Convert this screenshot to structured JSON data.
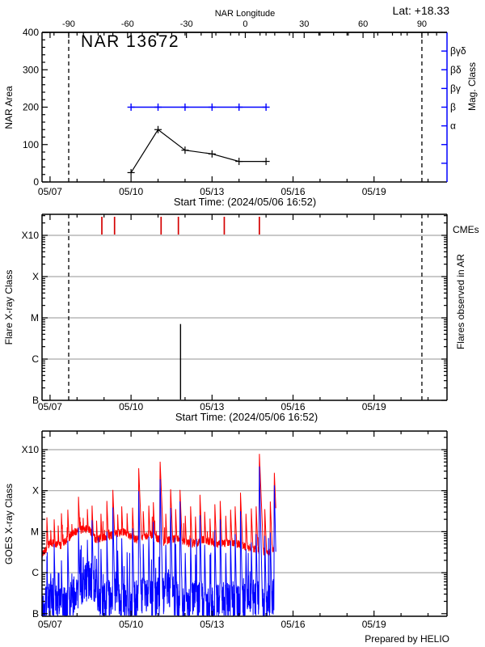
{
  "header": {
    "lat_label": "Lat: +18.33",
    "prepared_by": "Prepared by HELIO"
  },
  "colors": {
    "axis": "#000000",
    "blue": "#0000FF",
    "goes_red": "#FF0000",
    "goes_blue": "#0000FF",
    "cme_red": "#D40000",
    "grid": "#A9A9A9",
    "background": "#FFFFFF"
  },
  "x_axis": {
    "start_label": "Start Time: (2024/05/06 16:52)",
    "tick_labels": [
      "05/07",
      "05/10",
      "05/13",
      "05/16",
      "05/19"
    ],
    "tick_days": [
      0.297,
      3.297,
      6.297,
      9.297,
      12.297
    ],
    "minor_day_start": 0.297,
    "n_days": 15
  },
  "chart_data": [
    {
      "id": "nar_area_panel",
      "type": "line",
      "title": "NAR 13672",
      "lat_label": "Lat: +18.33",
      "ylabel": "NAR Area",
      "ylim": [
        0,
        400
      ],
      "y_major_step": 100,
      "y_minor_step": 20,
      "y_tick_labels": [
        "0",
        "100",
        "200",
        "300",
        "400"
      ],
      "top_axis": {
        "label": "NAR Longitude",
        "ticks": [
          -90,
          -60,
          -30,
          0,
          30,
          60,
          90
        ],
        "minor_step": 7.5,
        "limb_crossing_days": [
          0.988,
          14.07
        ]
      },
      "right_axis": {
        "label": "Mag. Class",
        "ticks": [
          {
            "area": 350,
            "label": "βγδ"
          },
          {
            "area": 300,
            "label": "βδ"
          },
          {
            "area": 250,
            "label": "βγ"
          },
          {
            "area": 200,
            "label": "β"
          },
          {
            "area": 150,
            "label": "α"
          },
          {
            "area": 100,
            "label": ""
          },
          {
            "area": 50,
            "label": ""
          }
        ]
      },
      "area_series": {
        "days": [
          3.297,
          4.297,
          5.297,
          6.297,
          7.297,
          8.297
        ],
        "dates": [
          "05/10",
          "05/11",
          "05/12",
          "05/13",
          "05/14",
          "05/15"
        ],
        "values": [
          25,
          140,
          85,
          75,
          55,
          55
        ]
      },
      "mag_class_series": {
        "days": [
          3.297,
          4.297,
          5.297,
          6.297,
          7.297,
          8.297
        ],
        "class_label": "β",
        "area_level": 200
      },
      "xlabel": "Start Time: (2024/05/06 16:52)"
    },
    {
      "id": "flare_panel",
      "type": "events",
      "ylabel": "Flare X-ray Class",
      "right_label": "Flares observed in AR",
      "cme_label": "CMEs",
      "y_ticks": [
        {
          "log": -7,
          "label": "B"
        },
        {
          "log": -6,
          "label": "C"
        },
        {
          "log": -5,
          "label": "M"
        },
        {
          "log": -4,
          "label": "X"
        },
        {
          "log": -3,
          "label": "X10"
        }
      ],
      "grid_logs": [
        -6,
        -5,
        -4,
        -3
      ],
      "limb_crossing_days": [
        0.988,
        14.07
      ],
      "cme_days": [
        2.216,
        2.686,
        4.41,
        5.05,
        6.75,
        8.05
      ],
      "flares": [
        {
          "day": 5.13,
          "peak_log": -5.15,
          "class": "C7"
        }
      ],
      "xlabel": "Start Time: (2024/05/06 16:52)"
    },
    {
      "id": "goes_panel",
      "type": "line",
      "ylabel": "GOES X-ray Class",
      "credit": "Prepared by HELIO",
      "y_ticks": [
        {
          "log": -7,
          "label": "B"
        },
        {
          "log": -6,
          "label": "C"
        },
        {
          "log": -5,
          "label": "M"
        },
        {
          "log": -4,
          "label": "X"
        },
        {
          "log": -3,
          "label": "X10"
        }
      ],
      "grid_logs": [
        -6,
        -5,
        -4,
        -3
      ],
      "series_gen": {
        "seed": 13672,
        "t_start": 0.0,
        "t_end": 8.66,
        "dt": 0.006,
        "rise_rate": 260,
        "red": {
          "noise": 0.1,
          "burst_prob": 0.02,
          "burst_amp": 0.45,
          "decay_rate": 16,
          "base_nodes": [
            [
              0,
              -5.6
            ],
            [
              0.3,
              -5.25
            ],
            [
              0.7,
              -5.35
            ],
            [
              1.2,
              -5.0
            ],
            [
              1.7,
              -4.9
            ],
            [
              2.0,
              -5.2
            ],
            [
              2.5,
              -5.1
            ],
            [
              3.0,
              -5.0
            ],
            [
              3.5,
              -5.2
            ],
            [
              4.0,
              -5.05
            ],
            [
              4.5,
              -5.25
            ],
            [
              5.0,
              -5.15
            ],
            [
              5.5,
              -5.3
            ],
            [
              6.0,
              -5.2
            ],
            [
              6.5,
              -5.3
            ],
            [
              7.0,
              -5.25
            ],
            [
              7.5,
              -5.35
            ],
            [
              8.0,
              -5.45
            ],
            [
              8.4,
              -5.5
            ],
            [
              8.66,
              -5.35
            ]
          ]
        },
        "blue": {
          "noise": 0.5,
          "burst_prob": 0.05,
          "burst_amp": 1.2,
          "decay_rate": 30,
          "base_nodes": [
            [
              0,
              -6.95
            ],
            [
              0.4,
              -6.6
            ],
            [
              0.9,
              -6.9
            ],
            [
              1.4,
              -6.3
            ],
            [
              1.8,
              -6.2
            ],
            [
              2.2,
              -6.8
            ],
            [
              2.7,
              -6.5
            ],
            [
              3.2,
              -6.9
            ],
            [
              3.7,
              -6.5
            ],
            [
              4.2,
              -6.7
            ],
            [
              4.7,
              -6.4
            ],
            [
              5.2,
              -6.9
            ],
            [
              5.7,
              -6.6
            ],
            [
              6.2,
              -6.9
            ],
            [
              6.7,
              -6.7
            ],
            [
              7.2,
              -6.85
            ],
            [
              7.7,
              -6.5
            ],
            [
              8.2,
              -6.9
            ],
            [
              8.66,
              -6.5
            ]
          ]
        },
        "spikes": [
          [
            0.18,
            -4.65,
            -5.6
          ],
          [
            0.32,
            -4.9,
            -5.9
          ],
          [
            0.45,
            -4.7,
            -5.3
          ],
          [
            0.6,
            -4.85,
            -6.0
          ],
          [
            0.72,
            -4.55,
            -5.7
          ],
          [
            0.95,
            -4.4,
            -5.1
          ],
          [
            1.1,
            -4.75,
            -5.9
          ],
          [
            1.35,
            -4.15,
            -4.9
          ],
          [
            1.52,
            -4.6,
            -5.5
          ],
          [
            1.68,
            -4.45,
            -5.2
          ],
          [
            1.85,
            -4.3,
            -4.6
          ],
          [
            2.02,
            -4.7,
            -5.6
          ],
          [
            2.18,
            -4.5,
            -5.3
          ],
          [
            2.4,
            -4.25,
            -5.0
          ],
          [
            2.62,
            -3.95,
            -4.35
          ],
          [
            2.8,
            -4.55,
            -5.4
          ],
          [
            2.95,
            -4.35,
            -5.1
          ],
          [
            3.15,
            -4.55,
            -5.5
          ],
          [
            3.35,
            -4.35,
            -4.8
          ],
          [
            3.58,
            -3.42,
            -3.95
          ],
          [
            3.75,
            -4.5,
            -5.3
          ],
          [
            3.95,
            -4.3,
            -5.0
          ],
          [
            4.12,
            -4.25,
            -4.7
          ],
          [
            4.37,
            -3.23,
            -3.6
          ],
          [
            4.58,
            -4.5,
            -5.2
          ],
          [
            4.76,
            -3.9,
            -4.3
          ],
          [
            4.95,
            -4.45,
            -5.3
          ],
          [
            5.11,
            -3.95,
            -4.2
          ],
          [
            5.3,
            -4.55,
            -5.4
          ],
          [
            5.5,
            -4.35,
            -5.1
          ],
          [
            5.68,
            -4.6,
            -5.5
          ],
          [
            5.85,
            -4.1,
            -4.6
          ],
          [
            6.02,
            -4.45,
            -5.2
          ],
          [
            6.22,
            -4.65,
            -5.5
          ],
          [
            6.4,
            -4.3,
            -4.9
          ],
          [
            6.6,
            -4.25,
            -4.7
          ],
          [
            6.8,
            -4.55,
            -5.4
          ],
          [
            6.98,
            -4.4,
            -5.1
          ],
          [
            7.15,
            -4.35,
            -5.0
          ],
          [
            7.35,
            -4.05,
            -4.5
          ],
          [
            7.55,
            -4.5,
            -5.3
          ],
          [
            7.75,
            -4.4,
            -5.2
          ],
          [
            7.93,
            -4.35,
            -5.0
          ],
          [
            8.05,
            -3.07,
            -3.35
          ],
          [
            8.25,
            -4.45,
            -5.1
          ],
          [
            8.45,
            -4.2,
            -4.9
          ],
          [
            8.6,
            -3.5,
            -3.75
          ]
        ]
      }
    }
  ]
}
